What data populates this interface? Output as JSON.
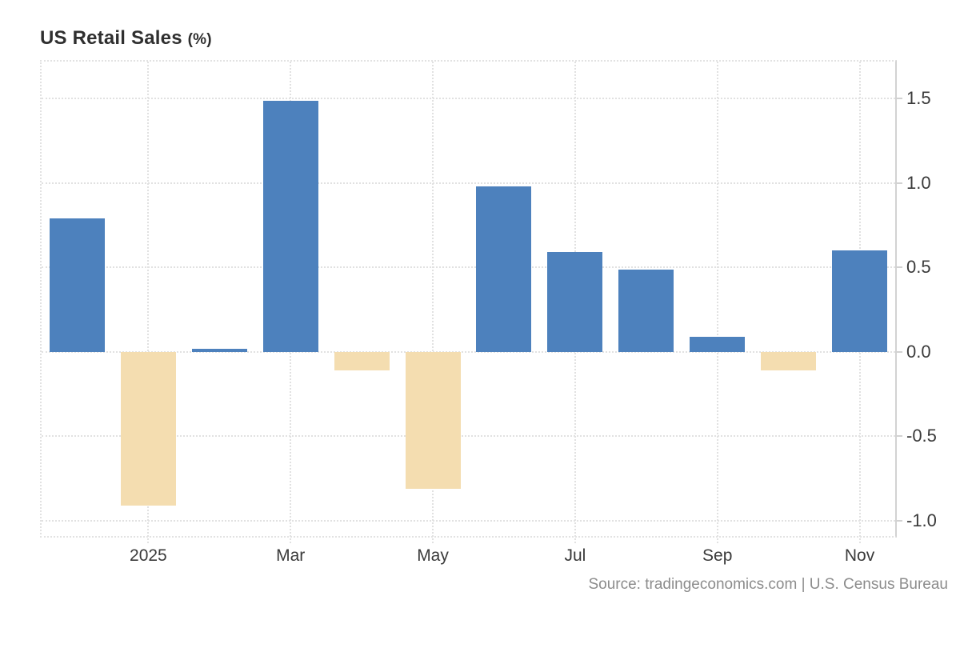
{
  "header": {
    "title_main": "US Retail Sales",
    "title_unit": "(%)"
  },
  "footer": {
    "source": "Source: tradingeconomics.com | U.S. Census Bureau"
  },
  "chart_data": {
    "type": "bar",
    "title": "US Retail Sales (%)",
    "n_bars": 12,
    "values": [
      0.79,
      -0.91,
      0.02,
      1.49,
      -0.11,
      -0.81,
      0.98,
      0.59,
      0.49,
      0.09,
      -0.11,
      0.6
    ],
    "x_tick_labels": [
      "2025",
      "Mar",
      "May",
      "Jul",
      "Sep",
      "Nov"
    ],
    "x_tick_bar_indices": [
      1,
      3,
      5,
      7,
      9,
      11
    ],
    "y_tick_labels": [
      "1.5",
      "1.0",
      "0.5",
      "0.0",
      "-0.5",
      "-1.0"
    ],
    "y_tick_values": [
      1.5,
      1.0,
      0.5,
      0.0,
      -0.5,
      -1.0
    ],
    "ylim": [
      -1.09,
      1.72
    ],
    "grid": "dotted",
    "legend": "none",
    "colors": {
      "positive": "#4d81bd",
      "negative": "#f4ddb0"
    },
    "source": "Source: tradingeconomics.com | U.S. Census Bureau"
  }
}
